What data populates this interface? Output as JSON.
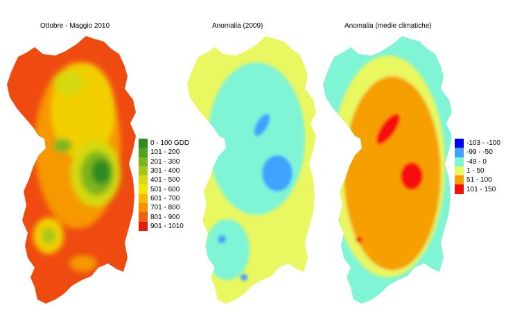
{
  "maps": [
    {
      "title": "Ottobre - Maggio 2010",
      "legend": [
        {
          "label": "0 - 100 GDD",
          "color": "#2e8b22"
        },
        {
          "label": "101 - 200",
          "color": "#4ea321"
        },
        {
          "label": "201 - 300",
          "color": "#7ab51f"
        },
        {
          "label": "301 - 400",
          "color": "#a6c61a"
        },
        {
          "label": "401 - 500",
          "color": "#d5d90f"
        },
        {
          "label": "501 - 600",
          "color": "#f2e600"
        },
        {
          "label": "601 - 700",
          "color": "#f8b800"
        },
        {
          "label": "701 - 800",
          "color": "#f59000"
        },
        {
          "label": "801 - 900",
          "color": "#f06010"
        },
        {
          "label": "901 - 1010",
          "color": "#e81a0c"
        }
      ]
    },
    {
      "title": "Anomalia (2009)",
      "legend": []
    },
    {
      "title": "Anomalia (medie climatiche)",
      "legend": [
        {
          "label": "-103 - -100",
          "color": "#0000ff"
        },
        {
          "label": "-99 - -50",
          "color": "#3da3ff"
        },
        {
          "label": "-49 - 0",
          "color": "#7ff5d6"
        },
        {
          "label": "1 - 50",
          "color": "#e9f760"
        },
        {
          "label": "51 - 100",
          "color": "#f5a000"
        },
        {
          "label": "101 - 150",
          "color": "#f70d0d"
        }
      ]
    }
  ]
}
